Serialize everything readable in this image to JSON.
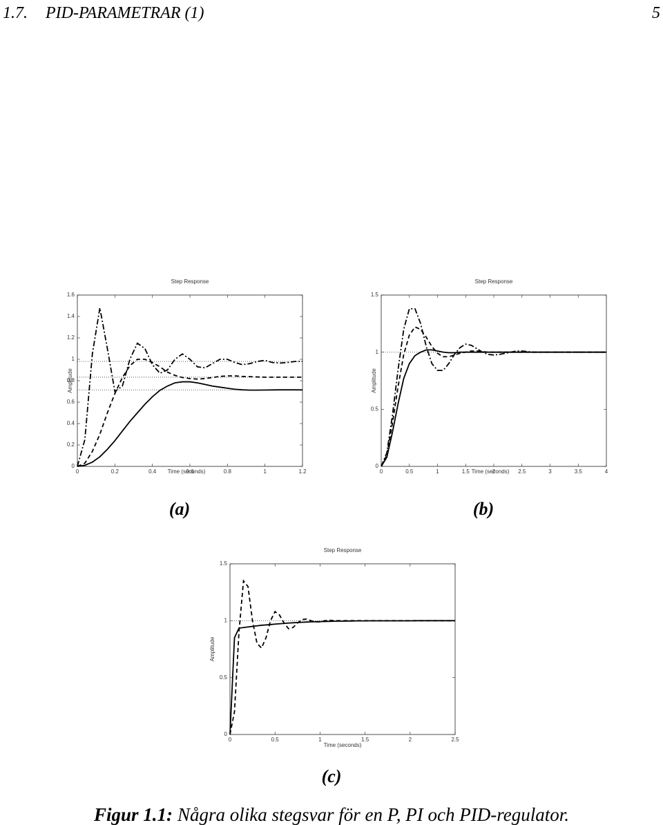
{
  "header": {
    "section_number": "1.7.",
    "section_title": "PID-PARAMETRAR (1)",
    "page": "5"
  },
  "chart_data": [
    {
      "type": "line",
      "title": "Step Response",
      "x_label": "Time (seconds)",
      "y_label": "Amplitude",
      "panel_label": "(a)",
      "xlim": [
        0,
        1.2
      ],
      "xticks": [
        0,
        0.2,
        0.4,
        0.6,
        0.8,
        1,
        1.2
      ],
      "ylim": [
        0,
        1.6
      ],
      "yticks": [
        0,
        0.2,
        0.4,
        0.6,
        0.8,
        1,
        1.2,
        1.4,
        1.6
      ],
      "x": [
        0,
        0.04,
        0.08,
        0.12,
        0.16,
        0.2,
        0.24,
        0.28,
        0.32,
        0.36,
        0.4,
        0.44,
        0.48,
        0.52,
        0.56,
        0.6,
        0.64,
        0.68,
        0.72,
        0.76,
        0.8,
        0.84,
        0.88,
        0.92,
        0.96,
        1,
        1.04,
        1.08,
        1.12,
        1.16,
        1.2
      ],
      "reference_lines": [
        0.714,
        0.833,
        0.98
      ],
      "reference_style": "dotted",
      "series": [
        {
          "color": "#000000",
          "dash": "solid",
          "values": [
            0,
            0.01,
            0.04,
            0.09,
            0.16,
            0.24,
            0.33,
            0.42,
            0.5,
            0.58,
            0.65,
            0.71,
            0.75,
            0.78,
            0.79,
            0.79,
            0.78,
            0.765,
            0.75,
            0.74,
            0.73,
            0.72,
            0.715,
            0.712,
            0.712,
            0.713,
            0.714,
            0.715,
            0.715,
            0.715,
            0.714
          ]
        },
        {
          "color": "#000000",
          "dash": "dashed",
          "values": [
            0,
            0.03,
            0.14,
            0.3,
            0.5,
            0.68,
            0.83,
            0.94,
            1.0,
            1.0,
            0.97,
            0.93,
            0.88,
            0.85,
            0.83,
            0.82,
            0.815,
            0.82,
            0.83,
            0.84,
            0.845,
            0.845,
            0.84,
            0.838,
            0.835,
            0.833,
            0.833,
            0.833,
            0.833,
            0.833,
            0.833
          ]
        },
        {
          "color": "#000000",
          "dash": "dashdot",
          "values": [
            0,
            0.25,
            1.05,
            1.48,
            1.1,
            0.7,
            0.75,
            1.0,
            1.15,
            1.1,
            0.95,
            0.87,
            0.9,
            1.0,
            1.05,
            1.0,
            0.93,
            0.92,
            0.96,
            1.0,
            1.0,
            0.97,
            0.95,
            0.96,
            0.98,
            0.99,
            0.97,
            0.965,
            0.97,
            0.98,
            0.98
          ]
        }
      ]
    },
    {
      "type": "line",
      "title": "Step Response",
      "x_label": "Time (seconds)",
      "y_label": "Amplitude",
      "panel_label": "(b)",
      "xlim": [
        0,
        4
      ],
      "xticks": [
        0,
        0.5,
        1,
        1.5,
        2,
        2.5,
        3,
        3.5,
        4
      ],
      "ylim": [
        0,
        1.5
      ],
      "yticks": [
        0,
        0.5,
        1,
        1.5
      ],
      "x": [
        0,
        0.1,
        0.2,
        0.3,
        0.4,
        0.5,
        0.6,
        0.7,
        0.8,
        0.9,
        1,
        1.1,
        1.2,
        1.3,
        1.4,
        1.5,
        1.6,
        1.7,
        1.8,
        1.9,
        2,
        2.1,
        2.2,
        2.3,
        2.4,
        2.5,
        2.6,
        2.7,
        2.8,
        2.9,
        3,
        3.1,
        3.2,
        3.3,
        3.4,
        3.5,
        3.6,
        3.7,
        3.8,
        3.9,
        4
      ],
      "reference_lines": [
        1
      ],
      "reference_style": "dotted",
      "series": [
        {
          "color": "#000000",
          "dash": "solid",
          "values": [
            0,
            0.08,
            0.3,
            0.55,
            0.77,
            0.9,
            0.97,
            1.0,
            1.02,
            1.02,
            1.01,
            1.0,
            0.995,
            0.995,
            1.0,
            1,
            1,
            1,
            1,
            1,
            1,
            1,
            1,
            1,
            1,
            1,
            1,
            1,
            1,
            1,
            1,
            1,
            1,
            1,
            1,
            1,
            1,
            1,
            1,
            1,
            1
          ]
        },
        {
          "color": "#000000",
          "dash": "dashed",
          "values": [
            0,
            0.1,
            0.38,
            0.7,
            0.98,
            1.15,
            1.22,
            1.2,
            1.13,
            1.05,
            0.99,
            0.96,
            0.96,
            0.975,
            0.99,
            1.0,
            1.01,
            1.01,
            1.005,
            1.0,
            1,
            1,
            1,
            1,
            1,
            1,
            1,
            1,
            1,
            1,
            1,
            1,
            1,
            1,
            1,
            1,
            1,
            1,
            1,
            1,
            1
          ]
        },
        {
          "color": "#000000",
          "dash": "dashdot",
          "values": [
            0,
            0.12,
            0.45,
            0.85,
            1.2,
            1.38,
            1.38,
            1.25,
            1.05,
            0.9,
            0.84,
            0.84,
            0.9,
            0.98,
            1.04,
            1.07,
            1.06,
            1.03,
            1.0,
            0.98,
            0.975,
            0.98,
            0.99,
            1.0,
            1.01,
            1.01,
            1.005,
            1.0,
            1,
            1,
            1,
            1,
            1,
            1,
            1,
            1,
            1,
            1,
            1,
            1,
            1
          ]
        }
      ]
    },
    {
      "type": "line",
      "title": "Step Response",
      "x_label": "Time (seconds)",
      "y_label": "Amplitude",
      "panel_label": "(c)",
      "xlim": [
        0,
        2.5
      ],
      "xticks": [
        0,
        0.5,
        1,
        1.5,
        2,
        2.5
      ],
      "ylim": [
        0,
        1.5
      ],
      "yticks": [
        0,
        0.5,
        1,
        1.5
      ],
      "x": [
        0,
        0.05,
        0.1,
        0.15,
        0.2,
        0.25,
        0.3,
        0.35,
        0.4,
        0.45,
        0.5,
        0.55,
        0.6,
        0.65,
        0.7,
        0.75,
        0.8,
        0.85,
        0.9,
        0.95,
        1,
        1.05,
        1.1,
        1.15,
        1.2,
        1.25,
        1.3,
        1.35,
        1.4,
        1.45,
        1.5,
        1.55,
        1.6,
        1.65,
        1.7,
        1.75,
        1.8,
        1.85,
        1.9,
        1.95,
        2,
        2.05,
        2.1,
        2.15,
        2.2,
        2.25,
        2.3,
        2.35,
        2.4,
        2.45,
        2.5
      ],
      "reference_lines": [
        1
      ],
      "reference_style": "dotted",
      "series": [
        {
          "color": "#000000",
          "dash": "solid",
          "values": [
            0,
            0.85,
            0.935,
            0.94,
            0.945,
            0.95,
            0.955,
            0.96,
            0.963,
            0.966,
            0.97,
            0.973,
            0.976,
            0.979,
            0.982,
            0.984,
            0.986,
            0.988,
            0.99,
            0.991,
            0.992,
            0.993,
            0.994,
            0.995,
            0.996,
            0.996,
            0.997,
            0.997,
            0.998,
            0.998,
            0.998,
            0.999,
            0.999,
            0.999,
            0.999,
            0.999,
            0.999,
            0.999,
            0.999,
            0.999,
            0.999,
            1,
            1,
            1,
            1,
            1,
            1,
            1,
            1,
            1,
            1
          ]
        },
        {
          "color": "#000000",
          "dash": "dashed",
          "values": [
            0,
            0.2,
            0.9,
            1.35,
            1.3,
            1.0,
            0.8,
            0.76,
            0.85,
            1.0,
            1.08,
            1.05,
            0.98,
            0.93,
            0.94,
            0.98,
            1.01,
            1.015,
            1.0,
            0.99,
            0.99,
            1.0,
            1.005,
            1.0,
            1,
            1,
            1,
            1,
            1,
            1,
            1,
            1,
            1,
            1,
            1,
            1,
            1,
            1,
            1,
            1,
            1,
            1,
            1,
            1,
            1,
            1,
            1,
            1,
            1,
            1,
            1
          ]
        }
      ]
    }
  ],
  "caption": {
    "label": "Figur 1.1:",
    "text": "Några olika stegsvar för en P, PI och PID-regulator."
  }
}
